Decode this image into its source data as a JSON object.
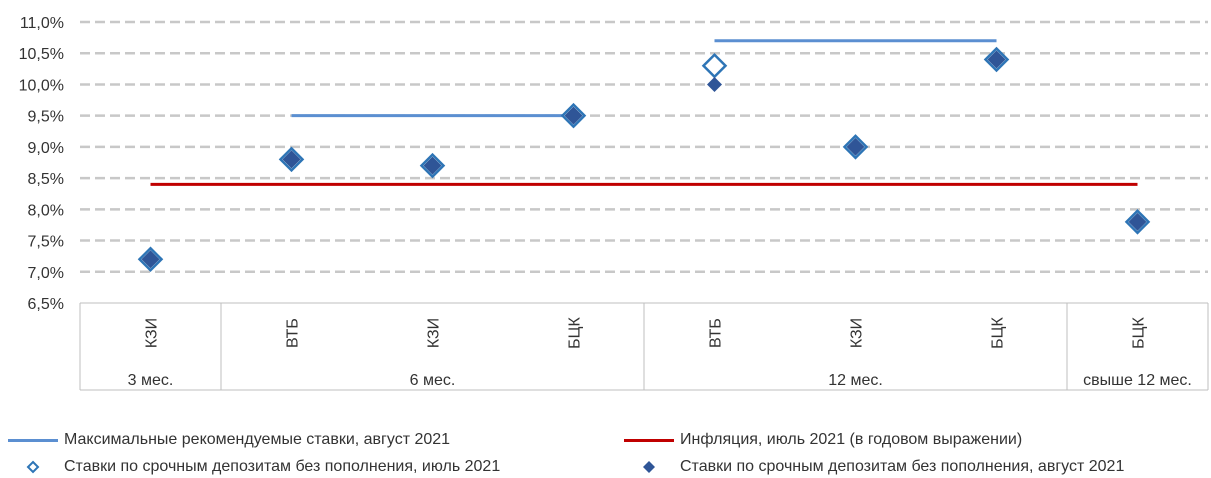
{
  "chart_data": {
    "type": "scatter",
    "y_ticks": [
      "11,0%",
      "10,5%",
      "10,0%",
      "9,5%",
      "9,0%",
      "8,5%",
      "8,0%",
      "7,5%",
      "7,0%",
      "6,5%"
    ],
    "ylim": [
      6.5,
      11.0
    ],
    "grid": true,
    "categories": [
      "КЗИ",
      "ВТБ",
      "КЗИ",
      "БЦК",
      "ВТБ",
      "КЗИ",
      "БЦК",
      "БЦК"
    ],
    "groups": [
      {
        "label": "3 мес.",
        "start": 0,
        "end": 0
      },
      {
        "label": "6 мес.",
        "start": 1,
        "end": 3
      },
      {
        "label": "12 мес.",
        "start": 4,
        "end": 6
      },
      {
        "label": "свыше 12 мес.",
        "start": 7,
        "end": 7
      }
    ],
    "series": [
      {
        "name": "Максимальные рекомендуемые ставки, август 2021",
        "kind": "line",
        "color": "#5b8fd1",
        "segments": [
          {
            "from": 1,
            "to": 3,
            "value": 9.5
          },
          {
            "from": 4,
            "to": 6,
            "value": 10.7
          }
        ]
      },
      {
        "name": "Инфляция, июль 2021 (в годовом выражении)",
        "kind": "line",
        "color": "#c00000",
        "segments": [
          {
            "from": 0,
            "to": 7,
            "value": 8.4
          }
        ]
      },
      {
        "name": "Ставки по срочным депозитам без пополнения, июль 2021",
        "kind": "marker-open",
        "color": "#2e75b6",
        "values": [
          7.2,
          8.8,
          8.7,
          9.5,
          10.3,
          9.0,
          10.4,
          7.8
        ]
      },
      {
        "name": "Ставки по срочным депозитам без пополнения, август 2021",
        "kind": "marker-filled",
        "color": "#2f5597",
        "values": [
          7.2,
          8.8,
          8.7,
          9.5,
          10.0,
          9.0,
          10.4,
          7.8
        ]
      }
    ],
    "legend_position": "bottom"
  },
  "legend": {
    "max_rates": "Максимальные рекомендуемые ставки, август 2021",
    "inflation": "Инфляция, июль 2021 (в годовом выражении)",
    "july_rates": "Ставки по срочным депозитам без пополнения, июль 2021",
    "august_rates": "Ставки по срочным депозитам без пополнения, август 2021"
  }
}
